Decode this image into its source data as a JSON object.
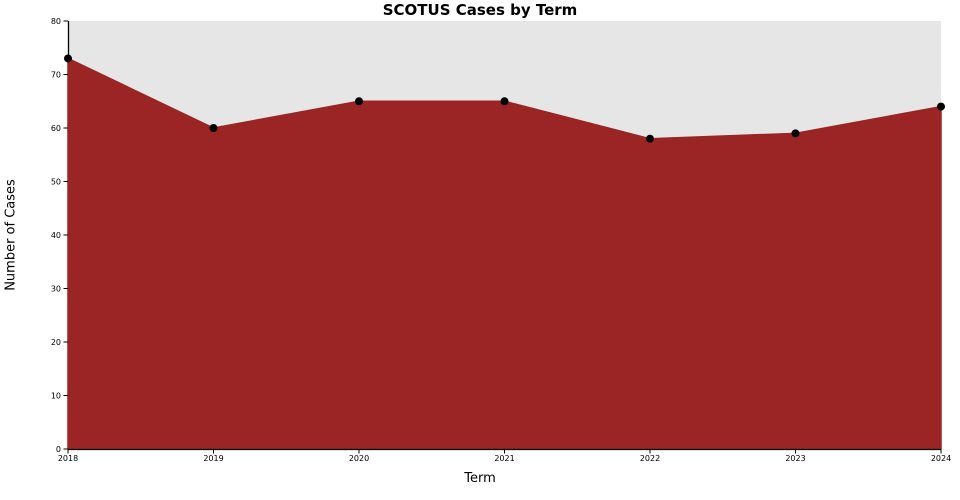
{
  "chart_data": {
    "type": "area",
    "title": "SCOTUS Cases by Term",
    "xlabel": "Term",
    "ylabel": "Number of Cases",
    "x": [
      2018,
      2019,
      2020,
      2021,
      2022,
      2023,
      2024
    ],
    "values": [
      73,
      60,
      65,
      65,
      58,
      59,
      64
    ],
    "xlim": [
      2018,
      2024
    ],
    "ylim": [
      0,
      80
    ],
    "xticks": [
      2018,
      2019,
      2020,
      2021,
      2022,
      2023,
      2024
    ],
    "yticks": [
      0,
      10,
      20,
      30,
      40,
      50,
      60,
      70,
      80
    ],
    "grid": false,
    "legend": null,
    "marker": "circle"
  },
  "colors": {
    "area_fill": "#9A2524",
    "plot_background": "#E6E6E6",
    "figure_background": "#FFFFFF",
    "marker": "#000000",
    "axis": "#000000",
    "text": "#000000"
  }
}
